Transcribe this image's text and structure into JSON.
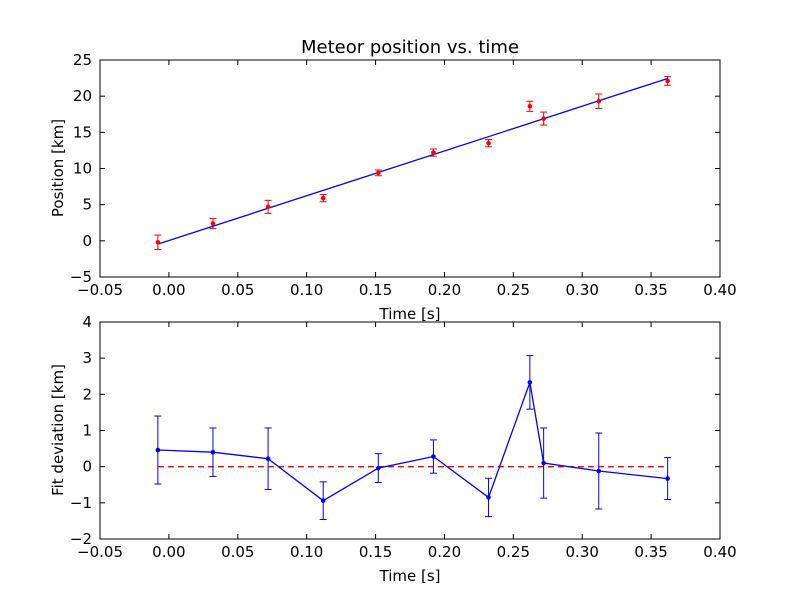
{
  "chart_data": [
    {
      "type": "scatter",
      "title": "Meteor position vs. time",
      "xlabel": "Time [s]",
      "ylabel": "Position [km]",
      "xlim": [
        -0.05,
        0.4
      ],
      "ylim": [
        -5,
        25
      ],
      "xticks": [
        "−0.05",
        "0.00",
        "0.05",
        "0.10",
        "0.15",
        "0.20",
        "0.25",
        "0.30",
        "0.35",
        "0.40"
      ],
      "yticks": [
        "−5",
        "0",
        "5",
        "10",
        "15",
        "20",
        "25"
      ],
      "grid": false,
      "colors": {
        "points": "#ff0000",
        "fit": "#0000ff"
      },
      "series": [
        {
          "kind": "errorbar-points",
          "x": [
            -0.008,
            0.032,
            0.072,
            0.112,
            0.152,
            0.192,
            0.232,
            0.262,
            0.272,
            0.312,
            0.362
          ],
          "y": [
            -0.2,
            2.4,
            4.7,
            5.9,
            9.4,
            12.2,
            13.5,
            18.6,
            16.9,
            19.3,
            22.1
          ],
          "err": [
            1.0,
            0.7,
            0.9,
            0.5,
            0.4,
            0.5,
            0.5,
            0.7,
            0.9,
            1.0,
            0.6
          ]
        },
        {
          "kind": "fit-line",
          "x": [
            -0.008,
            0.362
          ],
          "y": [
            -0.45,
            22.45
          ]
        }
      ]
    },
    {
      "type": "line",
      "title": "",
      "xlabel": "Time [s]",
      "ylabel": "Fit deviation [km]",
      "xlim": [
        -0.05,
        0.4
      ],
      "ylim": [
        -2,
        4
      ],
      "xticks": [
        "−0.05",
        "0.00",
        "0.05",
        "0.10",
        "0.15",
        "0.20",
        "0.25",
        "0.30",
        "0.35",
        "0.40"
      ],
      "yticks": [
        "−2",
        "−1",
        "0",
        "1",
        "2",
        "3",
        "4"
      ],
      "grid": false,
      "colors": {
        "series": "#0000ff",
        "zero": "#ff0000"
      },
      "zero_line": {
        "y": 0,
        "x": [
          -0.008,
          0.362
        ],
        "style": "dashed"
      },
      "series": [
        {
          "kind": "errorbar-line",
          "x": [
            -0.008,
            0.032,
            0.072,
            0.112,
            0.152,
            0.192,
            0.232,
            0.262,
            0.272,
            0.312,
            0.362
          ],
          "y": [
            0.46,
            0.4,
            0.22,
            -0.94,
            -0.04,
            0.28,
            -0.85,
            2.33,
            0.1,
            -0.12,
            -0.33
          ],
          "err": [
            0.94,
            0.67,
            0.85,
            0.52,
            0.4,
            0.46,
            0.53,
            0.74,
            0.97,
            1.05,
            0.58
          ]
        }
      ]
    }
  ]
}
